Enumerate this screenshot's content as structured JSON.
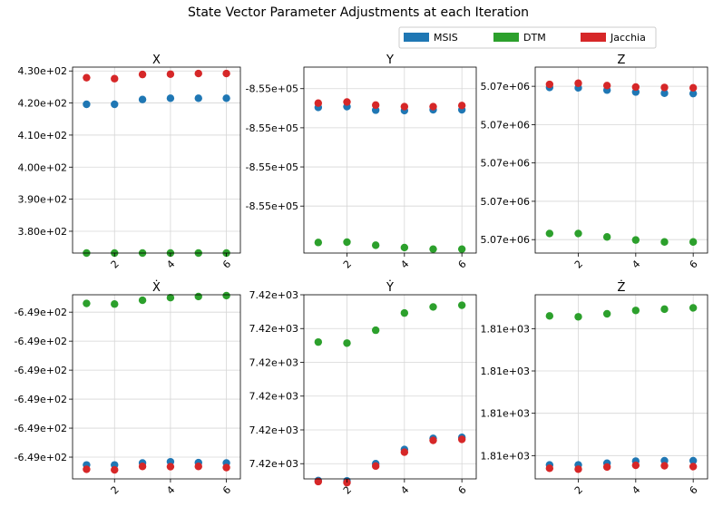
{
  "suptitle": "State Vector Parameter Adjustments at each Iteration",
  "legend": {
    "placement": "top-right",
    "entries": [
      {
        "label": "MSIS",
        "color": "#1f77b4"
      },
      {
        "label": "DTM",
        "color": "#2ca02c"
      },
      {
        "label": "Jacchia",
        "color": "#d62728"
      }
    ]
  },
  "chart_data": [
    {
      "type": "scatter",
      "title": "X",
      "grid": true,
      "x": [
        1,
        2,
        3,
        4,
        5,
        6
      ],
      "xticks": [
        2,
        4,
        6
      ],
      "xticklabels": [
        "2",
        "4",
        "6"
      ],
      "xlim": [
        0.5,
        6.5
      ],
      "ylim": [
        373.2,
        431.2
      ],
      "yticks": [
        380,
        390,
        400,
        410,
        420,
        430
      ],
      "yticklabels": [
        "3.80e+02",
        "3.90e+02",
        "4.00e+02",
        "4.10e+02",
        "4.20e+02",
        "4.30e+02"
      ],
      "series": [
        {
          "name": "MSIS",
          "color": "#1f77b4",
          "values": [
            419.6,
            419.6,
            421.1,
            421.5,
            421.5,
            421.5
          ]
        },
        {
          "name": "DTM",
          "color": "#2ca02c",
          "values": [
            373.2,
            373.2,
            373.2,
            373.2,
            373.2,
            373.2
          ]
        },
        {
          "name": "Jacchia",
          "color": "#d62728",
          "values": [
            427.9,
            427.6,
            428.9,
            429.0,
            429.2,
            429.2
          ]
        }
      ]
    },
    {
      "type": "scatter",
      "title": "Y",
      "grid": true,
      "x": [
        1,
        2,
        3,
        4,
        5,
        6
      ],
      "xticks": [
        2,
        4,
        6
      ],
      "xticklabels": [
        "2",
        "4",
        "6"
      ],
      "xlim": [
        0.5,
        6.5
      ],
      "ylim": [
        -4.2,
        0.55
      ],
      "yticks": [
        -3.0,
        -2.0,
        -1.0,
        0.0
      ],
      "yticklabels": [
        "-8.55e+05",
        "-8.55e+05",
        "-8.55e+05",
        "-8.55e+05"
      ],
      "series": [
        {
          "name": "MSIS",
          "color": "#1f77b4",
          "values": [
            -0.48,
            -0.46,
            -0.55,
            -0.56,
            -0.54,
            -0.54
          ]
        },
        {
          "name": "DTM",
          "color": "#2ca02c",
          "values": [
            -3.93,
            -3.92,
            -4.0,
            -4.06,
            -4.1,
            -4.1
          ]
        },
        {
          "name": "Jacchia",
          "color": "#d62728",
          "values": [
            -0.37,
            -0.34,
            -0.42,
            -0.46,
            -0.46,
            -0.43
          ]
        }
      ]
    },
    {
      "type": "scatter",
      "title": "Z",
      "grid": true,
      "x": [
        1,
        2,
        3,
        4,
        5,
        6
      ],
      "xticks": [
        2,
        4,
        6
      ],
      "xticklabels": [
        "2",
        "4",
        "6"
      ],
      "xlim": [
        0.5,
        6.5
      ],
      "ylim": [
        -4.35,
        0.5
      ],
      "yticks": [
        -4.0,
        -3.0,
        -2.0,
        -1.0,
        0.0
      ],
      "yticklabels": [
        "5.07e+06",
        "5.07e+06",
        "5.07e+06",
        "5.07e+06",
        "5.07e+06"
      ],
      "series": [
        {
          "name": "MSIS",
          "color": "#1f77b4",
          "values": [
            -0.03,
            -0.04,
            -0.1,
            -0.15,
            -0.18,
            -0.19
          ]
        },
        {
          "name": "DTM",
          "color": "#2ca02c",
          "values": [
            -3.84,
            -3.84,
            -3.93,
            -4.01,
            -4.06,
            -4.06
          ]
        },
        {
          "name": "Jacchia",
          "color": "#d62728",
          "values": [
            0.05,
            0.08,
            0.02,
            -0.02,
            -0.03,
            -0.04
          ]
        }
      ]
    },
    {
      "type": "scatter",
      "title": "Ẋ",
      "grid": true,
      "x": [
        1,
        2,
        3,
        4,
        5,
        6
      ],
      "xticks": [
        2,
        4,
        6
      ],
      "xticklabels": [
        "2",
        "4",
        "6"
      ],
      "xlim": [
        0.5,
        6.5
      ],
      "ylim": [
        -5.75,
        0.6
      ],
      "yticks": [
        -5.0,
        -4.0,
        -3.0,
        -2.0,
        -1.0,
        0.0
      ],
      "yticklabels": [
        "-6.49e+02",
        "-6.49e+02",
        "-6.49e+02",
        "-6.49e+02",
        "-6.49e+02",
        "-6.49e+02"
      ],
      "series": [
        {
          "name": "MSIS",
          "color": "#1f77b4",
          "values": [
            -5.27,
            -5.27,
            -5.2,
            -5.16,
            -5.19,
            -5.2
          ]
        },
        {
          "name": "DTM",
          "color": "#2ca02c",
          "values": [
            0.3,
            0.28,
            0.41,
            0.5,
            0.54,
            0.57
          ]
        },
        {
          "name": "Jacchia",
          "color": "#d62728",
          "values": [
            -5.42,
            -5.44,
            -5.32,
            -5.33,
            -5.32,
            -5.36
          ]
        }
      ]
    },
    {
      "type": "scatter",
      "title": "Ẏ",
      "grid": true,
      "x": [
        1,
        2,
        3,
        4,
        5,
        6
      ],
      "xticks": [
        2,
        4,
        6
      ],
      "xticklabels": [
        "2",
        "4",
        "6"
      ],
      "xlim": [
        0.5,
        6.5
      ],
      "ylim": [
        -0.45,
        5.0
      ],
      "yticks": [
        0.0,
        1.0,
        2.0,
        3.0,
        4.0,
        5.0
      ],
      "yticklabels": [
        "7.42e+03",
        "7.42e+03",
        "7.42e+03",
        "7.42e+03",
        "7.42e+03",
        "7.42e+03"
      ],
      "series": [
        {
          "name": "MSIS",
          "color": "#1f77b4",
          "values": [
            -0.5,
            -0.51,
            0.0,
            0.42,
            0.75,
            0.78
          ]
        },
        {
          "name": "DTM",
          "color": "#2ca02c",
          "values": [
            3.6,
            3.57,
            3.95,
            4.46,
            4.64,
            4.69
          ]
        },
        {
          "name": "Jacchia",
          "color": "#d62728",
          "values": [
            -0.53,
            -0.56,
            -0.07,
            0.34,
            0.69,
            0.72
          ]
        }
      ]
    },
    {
      "type": "scatter",
      "title": "Ż",
      "grid": true,
      "x": [
        1,
        2,
        3,
        4,
        5,
        6
      ],
      "xticks": [
        2,
        4,
        6
      ],
      "xticklabels": [
        "2",
        "4",
        "6"
      ],
      "xlim": [
        0.5,
        6.5
      ],
      "ylim": [
        -0.55,
        3.8
      ],
      "yticks": [
        0.0,
        1.0,
        2.0,
        3.0
      ],
      "yticklabels": [
        "1.81e+03",
        "1.81e+03",
        "1.81e+03",
        "1.81e+03"
      ],
      "series": [
        {
          "name": "MSIS",
          "color": "#1f77b4",
          "values": [
            -0.22,
            -0.22,
            -0.18,
            -0.13,
            -0.12,
            -0.12
          ]
        },
        {
          "name": "DTM",
          "color": "#2ca02c",
          "values": [
            3.3,
            3.28,
            3.35,
            3.43,
            3.46,
            3.49
          ]
        },
        {
          "name": "Jacchia",
          "color": "#d62728",
          "values": [
            -0.3,
            -0.32,
            -0.27,
            -0.23,
            -0.24,
            -0.26
          ]
        }
      ]
    }
  ]
}
